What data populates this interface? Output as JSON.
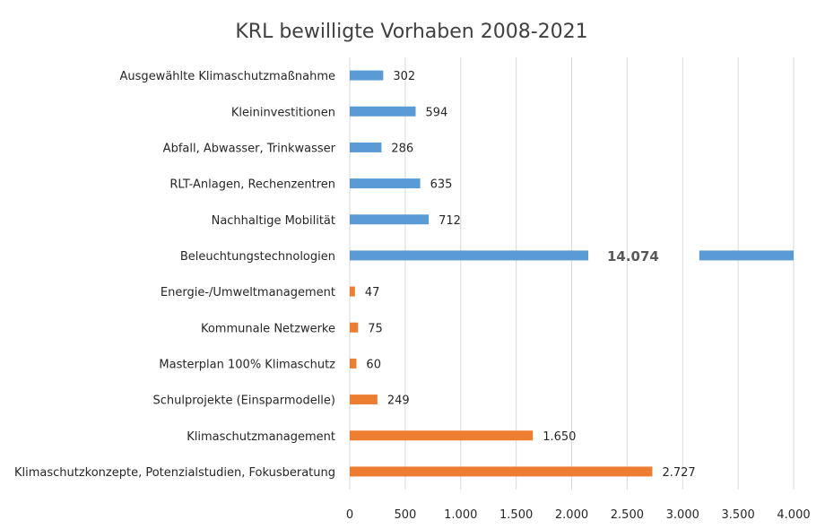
{
  "chart_data": {
    "type": "bar",
    "orientation": "horizontal",
    "title": "KRL bewilligte Vorhaben 2008-2021",
    "xlabel": "",
    "ylabel": "",
    "xlim": [
      0,
      4000
    ],
    "grid": true,
    "legend": "none",
    "categories": [
      "Ausgewählte Klimaschutzmaßnahme",
      "Kleininvestitionen",
      "Abfall, Abwasser, Trinkwasser",
      "RLT-Anlagen, Rechenzentren",
      "Nachhaltige Mobilität",
      "Beleuchtungstechnologien",
      "Energie-/Umweltmanagement",
      "Kommunale Netzwerke",
      "Masterplan 100% Klimaschutz",
      "Schulprojekte (Einsparmodelle)",
      "Klimaschutzmanagement",
      "Klimaschutzkonzepte, Potenzialstudien, Fokusberatung"
    ],
    "values": [
      302,
      594,
      286,
      635,
      712,
      14074,
      47,
      75,
      60,
      249,
      1650,
      2727
    ],
    "value_labels": [
      "302",
      "594",
      "286",
      "635",
      "712",
      "14.074",
      "47",
      "75",
      "60",
      "249",
      "1.650",
      "2.727"
    ],
    "bar_colors": [
      "#5b9bd5",
      "#5b9bd5",
      "#5b9bd5",
      "#5b9bd5",
      "#5b9bd5",
      "#5b9bd5",
      "#ed7d31",
      "#ed7d31",
      "#ed7d31",
      "#ed7d31",
      "#ed7d31",
      "#ed7d31"
    ],
    "truncated_bars": [
      "Beleuchtungstechnologien"
    ],
    "x_ticks": [
      0,
      500,
      1000,
      1500,
      2000,
      2500,
      3000,
      3500,
      4000
    ],
    "x_tick_labels": [
      "0",
      "500",
      "1.000",
      "1.500",
      "2.000",
      "2.500",
      "3.000",
      "3.500",
      "4.000"
    ]
  }
}
